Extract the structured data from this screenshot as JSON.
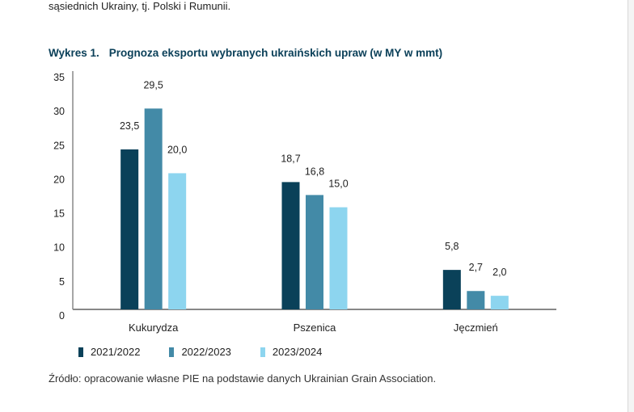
{
  "previous_text": "sąsiednich Ukrainy, tj. Polski i Rumunii.",
  "figure_number": "Wykres 1.",
  "source": "Źródło: opracowanie własne PIE na podstawie danych Ukrainian Grain Association.",
  "chart_data": {
    "type": "bar",
    "title": "Prognoza eksportu wybranych ukraińskich upraw (w MY w mmt)",
    "categories": [
      "Kukurydza",
      "Pszenica",
      "Jęczmień"
    ],
    "series": [
      {
        "name": "2021/2022",
        "values": [
          23.5,
          18.7,
          5.8
        ],
        "labels": [
          "23,5",
          "18,7",
          "5,8"
        ],
        "color": "#0a4159"
      },
      {
        "name": "2022/2023",
        "values": [
          29.5,
          16.8,
          2.7
        ],
        "labels": [
          "29,5",
          "16,8",
          "2,7"
        ],
        "color": "#438aa7"
      },
      {
        "name": "2023/2024",
        "values": [
          20.0,
          15.0,
          2.0
        ],
        "labels": [
          "20,0",
          "15,0",
          "2,0"
        ],
        "color": "#8dd5ef"
      }
    ],
    "ylim": [
      0,
      35
    ],
    "yticks": [
      "0",
      "5",
      "10",
      "15",
      "20",
      "25",
      "30",
      "35"
    ],
    "grid": false,
    "legend": "bottom-left"
  }
}
